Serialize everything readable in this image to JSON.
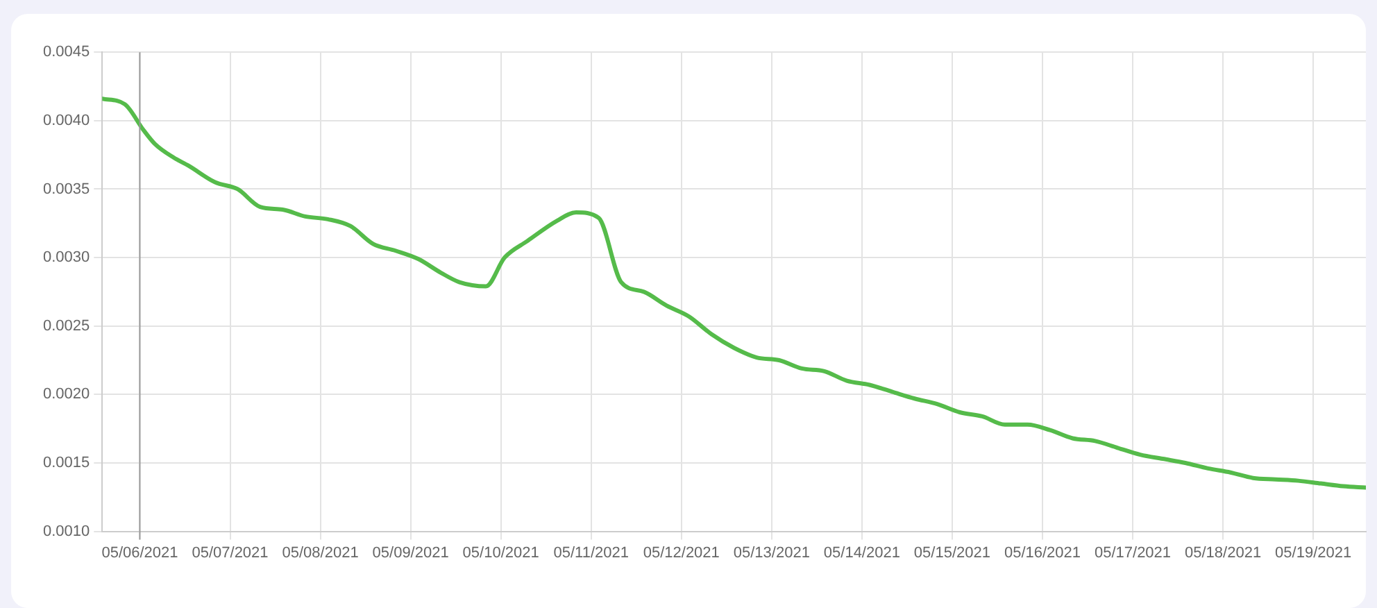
{
  "chart_data": {
    "type": "line",
    "x": [
      "2021-05-05T14:00",
      "2021-05-05T20:00",
      "2021-05-06T01:00",
      "2021-05-06T04:00",
      "2021-05-06T09:00",
      "2021-05-06T13:00",
      "2021-05-06T20:00",
      "2021-05-07T02:00",
      "2021-05-07T08:00",
      "2021-05-07T14:00",
      "2021-05-07T20:00",
      "2021-05-08T02:00",
      "2021-05-08T08:00",
      "2021-05-08T14:00",
      "2021-05-08T20:00",
      "2021-05-09T02:00",
      "2021-05-09T08:00",
      "2021-05-09T13:00",
      "2021-05-09T20:00",
      "2021-05-10T01:00",
      "2021-05-10T07:00",
      "2021-05-10T15:00",
      "2021-05-10T20:00",
      "2021-05-11T02:00",
      "2021-05-11T08:00",
      "2021-05-11T14:00",
      "2021-05-11T20:00",
      "2021-05-12T02:00",
      "2021-05-12T08:00",
      "2021-05-12T14:00",
      "2021-05-12T20:00",
      "2021-05-13T02:00",
      "2021-05-13T08:00",
      "2021-05-13T14:00",
      "2021-05-13T20:00",
      "2021-05-14T02:00",
      "2021-05-14T08:00",
      "2021-05-14T14:00",
      "2021-05-14T20:00",
      "2021-05-15T02:00",
      "2021-05-15T08:00",
      "2021-05-15T14:00",
      "2021-05-15T20:00",
      "2021-05-16T02:00",
      "2021-05-16T08:00",
      "2021-05-16T14:00",
      "2021-05-16T20:00",
      "2021-05-17T02:00",
      "2021-05-17T08:00",
      "2021-05-17T14:00",
      "2021-05-17T20:00",
      "2021-05-18T02:00",
      "2021-05-18T08:00",
      "2021-05-18T14:00",
      "2021-05-18T20:00",
      "2021-05-19T02:00",
      "2021-05-19T08:00",
      "2021-05-19T14:00"
    ],
    "series": [
      {
        "color": "#55bb4a",
        "values": [
          0.00416,
          0.00412,
          0.00393,
          0.00383,
          0.00373,
          0.00367,
          0.00355,
          0.0035,
          0.00337,
          0.00335,
          0.0033,
          0.00328,
          0.00323,
          0.0031,
          0.00305,
          0.00299,
          0.00289,
          0.00282,
          0.00279,
          0.003,
          0.00312,
          0.00327,
          0.00333,
          0.00329,
          0.00282,
          0.00275,
          0.00265,
          0.00257,
          0.00244,
          0.00234,
          0.00227,
          0.00225,
          0.00219,
          0.00217,
          0.0021,
          0.00207,
          0.00202,
          0.00197,
          0.00193,
          0.00187,
          0.00184,
          0.00178,
          0.00178,
          0.00174,
          0.00168,
          0.00166,
          0.00161,
          0.00156,
          0.00153,
          0.0015,
          0.00146,
          0.00143,
          0.00139,
          0.00138,
          0.00137,
          0.00135,
          0.00133,
          0.00132
        ]
      }
    ],
    "xlim": [
      "2021-05-05T14:00",
      "2021-05-19T14:00"
    ],
    "xticks": [
      {
        "value": "2021-05-06",
        "label": "05/06/2021"
      },
      {
        "value": "2021-05-07",
        "label": "05/07/2021"
      },
      {
        "value": "2021-05-08",
        "label": "05/08/2021"
      },
      {
        "value": "2021-05-09",
        "label": "05/09/2021"
      },
      {
        "value": "2021-05-10",
        "label": "05/10/2021"
      },
      {
        "value": "2021-05-11",
        "label": "05/11/2021"
      },
      {
        "value": "2021-05-12",
        "label": "05/12/2021"
      },
      {
        "value": "2021-05-13",
        "label": "05/13/2021"
      },
      {
        "value": "2021-05-14",
        "label": "05/14/2021"
      },
      {
        "value": "2021-05-15",
        "label": "05/15/2021"
      },
      {
        "value": "2021-05-16",
        "label": "05/16/2021"
      },
      {
        "value": "2021-05-17",
        "label": "05/17/2021"
      },
      {
        "value": "2021-05-18",
        "label": "05/18/2021"
      },
      {
        "value": "2021-05-19",
        "label": "05/19/2021"
      }
    ],
    "ylim": [
      0.001,
      0.0045
    ],
    "yticks": [
      {
        "value": 0.001,
        "label": "0.0010"
      },
      {
        "value": 0.0015,
        "label": "0.0015"
      },
      {
        "value": 0.002,
        "label": "0.0020"
      },
      {
        "value": 0.0025,
        "label": "0.0025"
      },
      {
        "value": 0.003,
        "label": "0.0030"
      },
      {
        "value": 0.0035,
        "label": "0.0035"
      },
      {
        "value": 0.004,
        "label": "0.0040"
      },
      {
        "value": 0.0045,
        "label": "0.0045"
      }
    ],
    "ref_lines": [
      {
        "axis": "x",
        "value": "2021-05-06",
        "color": "#999999"
      }
    ],
    "grid": true,
    "legend": false,
    "marker": "none",
    "line_style": "solid"
  }
}
